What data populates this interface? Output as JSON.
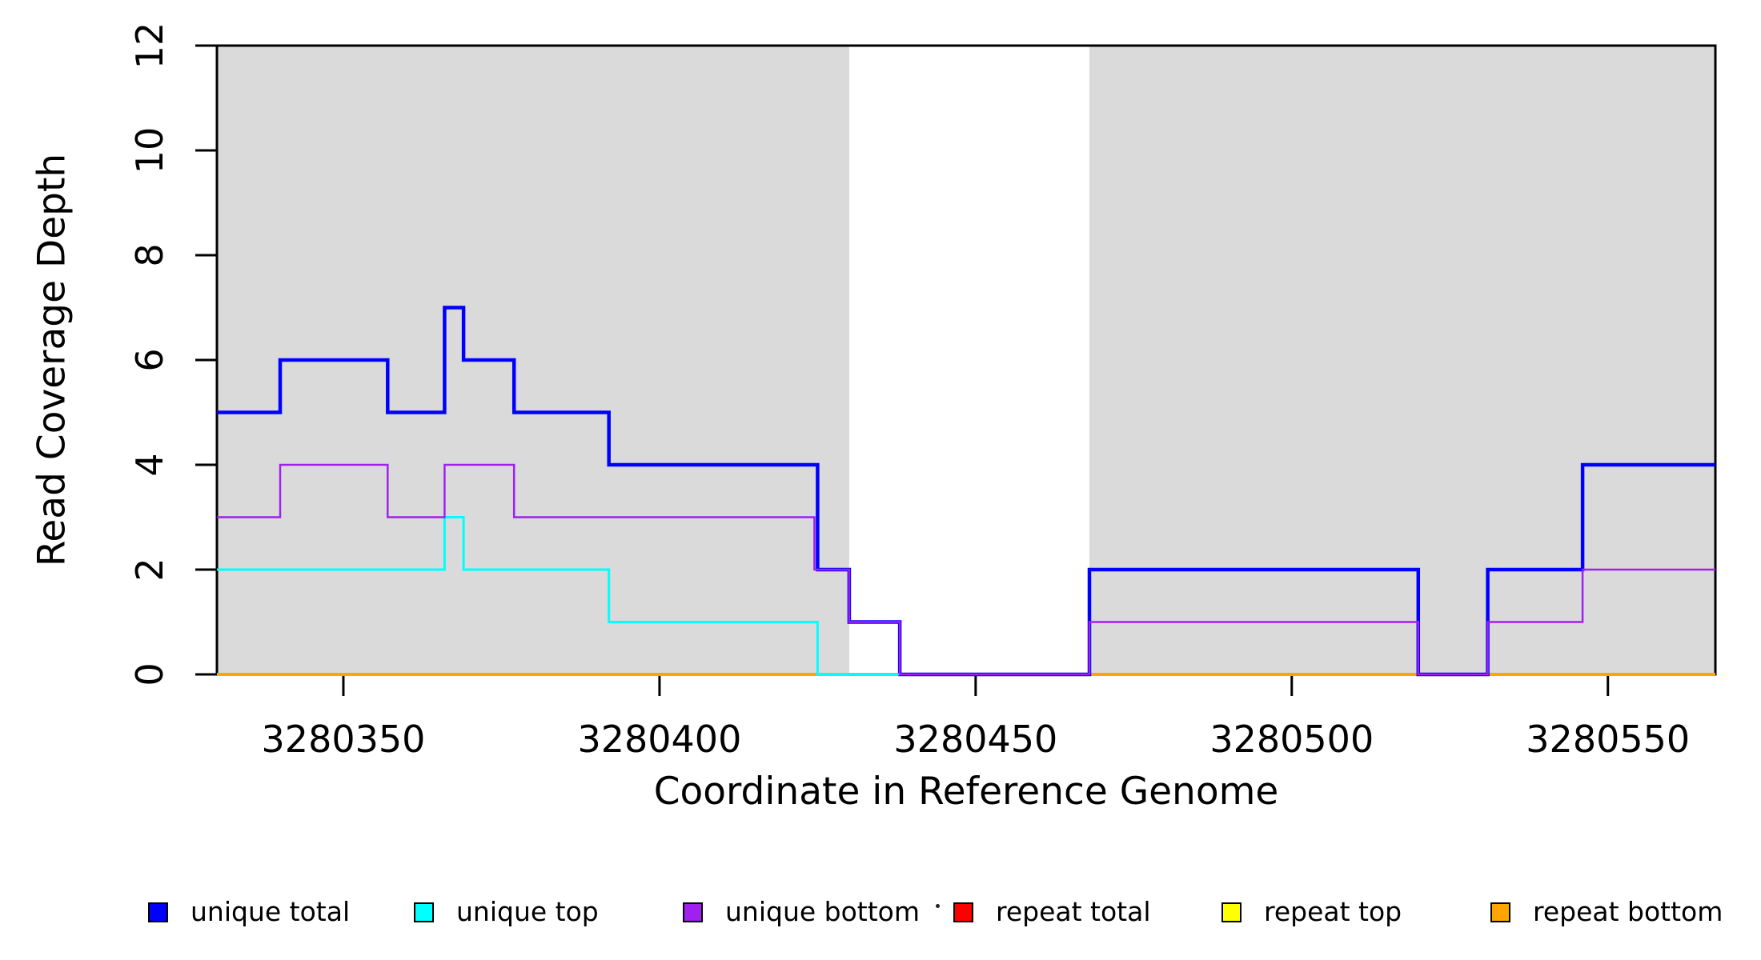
{
  "figure": {
    "background_color": "#ffffff",
    "plot_border_color": "#000000",
    "shaded_region_color": "#DADADA",
    "text_color": "#000000"
  },
  "legend": [
    {
      "label": "unique total",
      "color": "#0000FF"
    },
    {
      "label": "unique top",
      "color": "#00FFFF"
    },
    {
      "label": "unique bottom",
      "color": "#A020F0"
    },
    {
      "label": "repeat total",
      "color": "#FF0000"
    },
    {
      "label": "repeat top",
      "color": "#FFFF00"
    },
    {
      "label": "repeat bottom",
      "color": "#FFA500"
    }
  ],
  "stray_dot": {
    "visible": true,
    "color": "#222222"
  },
  "chart_data": {
    "type": "line",
    "subtype": "step",
    "title": "",
    "xlabel": "Coordinate in Reference Genome",
    "ylabel": "Read Coverage Depth",
    "xlim": [
      3280330,
      3280567
    ],
    "ylim": [
      0,
      12
    ],
    "x_ticks": [
      3280350,
      3280400,
      3280450,
      3280500,
      3280550
    ],
    "y_ticks": [
      0,
      2,
      4,
      6,
      8,
      10,
      12
    ],
    "grid": false,
    "legend_position": "bottom",
    "shaded_regions": [
      {
        "x_start": 3280330,
        "x_end": 3280430
      },
      {
        "x_start": 3280468,
        "x_end": 3280567
      }
    ],
    "series": [
      {
        "name": "repeat total",
        "color": "#FF0000",
        "line_width": 3,
        "x_end": 3280567,
        "step_points": [
          [
            3280330,
            0
          ]
        ]
      },
      {
        "name": "repeat top",
        "color": "#FFFF00",
        "line_width": 3,
        "x_end": 3280567,
        "step_points": [
          [
            3280330,
            0
          ]
        ]
      },
      {
        "name": "repeat bottom",
        "color": "#FFA500",
        "line_width": 4,
        "x_end": 3280567,
        "step_points": [
          [
            3280330,
            0
          ]
        ]
      },
      {
        "name": "unique total",
        "color": "#0000FF",
        "line_width": 4.5,
        "x_end": 3280567,
        "step_points": [
          [
            3280330,
            5
          ],
          [
            3280340,
            6
          ],
          [
            3280357,
            5
          ],
          [
            3280366,
            7
          ],
          [
            3280369,
            6
          ],
          [
            3280377,
            5
          ],
          [
            3280392,
            4
          ],
          [
            3280425,
            2
          ],
          [
            3280430,
            1
          ],
          [
            3280438,
            0
          ],
          [
            3280468,
            2
          ],
          [
            3280520,
            0
          ],
          [
            3280531,
            2
          ],
          [
            3280546,
            4
          ]
        ]
      },
      {
        "name": "unique top",
        "color": "#00FFFF",
        "line_width": 3,
        "x_end": 3280438,
        "step_points": [
          [
            3280330,
            2
          ],
          [
            3280366,
            3
          ],
          [
            3280369,
            2
          ],
          [
            3280392,
            1
          ],
          [
            3280425,
            0
          ]
        ]
      },
      {
        "name": "unique bottom",
        "color": "#A020F0",
        "line_width": 2.5,
        "x_end": 3280567,
        "step_points": [
          [
            3280330,
            3
          ],
          [
            3280340,
            4
          ],
          [
            3280357,
            3
          ],
          [
            3280366,
            4
          ],
          [
            3280377,
            3
          ],
          [
            3280424.5,
            2
          ],
          [
            3280430,
            1
          ],
          [
            3280438,
            0
          ],
          [
            3280468,
            1
          ],
          [
            3280520,
            0
          ],
          [
            3280531,
            1
          ],
          [
            3280546,
            2
          ]
        ]
      }
    ],
    "draw_order": [
      "repeat total",
      "repeat top",
      "repeat bottom",
      "unique total",
      "unique top",
      "unique bottom"
    ]
  }
}
